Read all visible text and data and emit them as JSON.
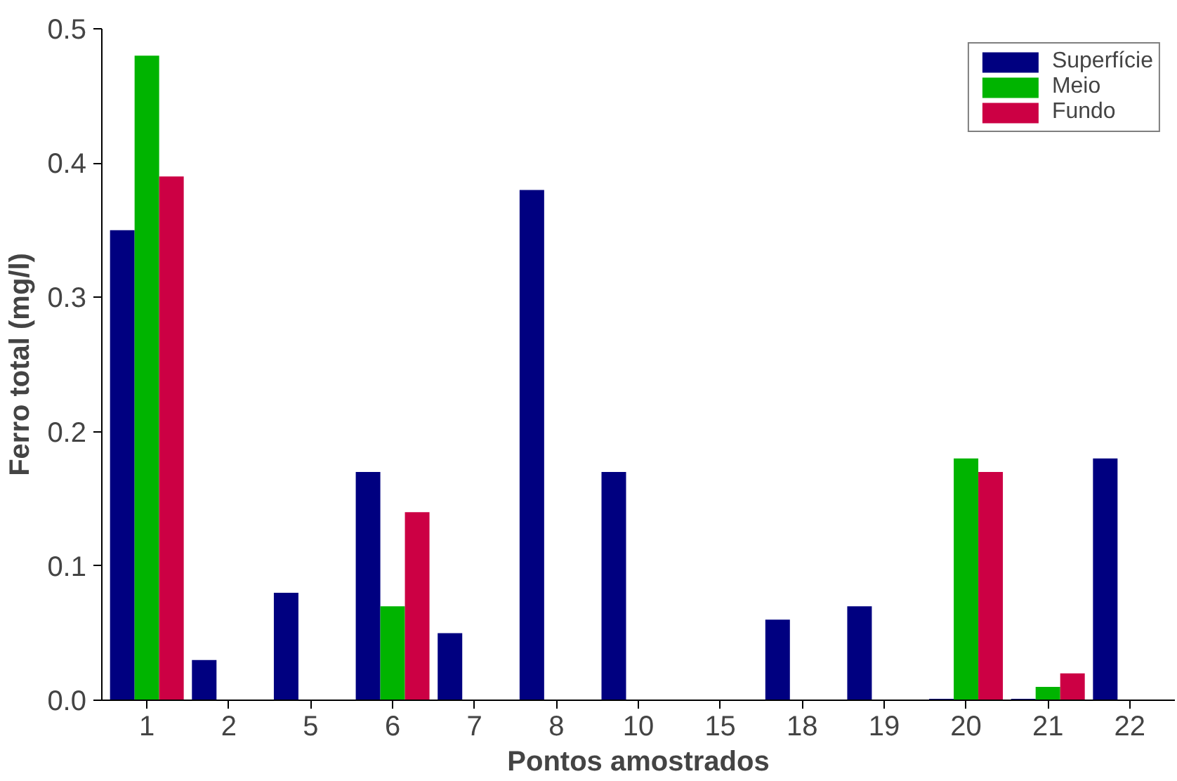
{
  "chart_data": {
    "type": "bar",
    "xlabel": "Pontos amostrados",
    "ylabel": "Ferro total (mg/l)",
    "categories": [
      "1",
      "2",
      "5",
      "6",
      "7",
      "8",
      "10",
      "15",
      "18",
      "19",
      "20",
      "21",
      "22"
    ],
    "series": [
      {
        "name": "Superfície",
        "color": "#000080",
        "values": [
          0.35,
          0.03,
          0.08,
          0.17,
          0.05,
          0.38,
          0.17,
          null,
          0.06,
          0.07,
          0.001,
          0.001,
          0.18
        ]
      },
      {
        "name": "Meio",
        "color": "#00b400",
        "values": [
          0.48,
          null,
          null,
          0.07,
          null,
          null,
          null,
          null,
          null,
          null,
          0.18,
          0.01,
          null
        ]
      },
      {
        "name": "Fundo",
        "color": "#cc0044",
        "values": [
          0.39,
          null,
          null,
          0.14,
          null,
          null,
          null,
          null,
          null,
          null,
          0.17,
          0.02,
          null
        ]
      }
    ],
    "ylim": [
      0,
      0.5
    ],
    "yticks": [
      {
        "value": 0,
        "label": "0.0"
      },
      {
        "value": 0.1,
        "label": "0.1"
      },
      {
        "value": 0.2,
        "label": "0.2"
      },
      {
        "value": 0.3,
        "label": "0.3"
      },
      {
        "value": 0.4,
        "label": "0.4"
      },
      {
        "value": 0.5,
        "label": "0.5"
      }
    ],
    "grid": false,
    "legend": "top right"
  }
}
